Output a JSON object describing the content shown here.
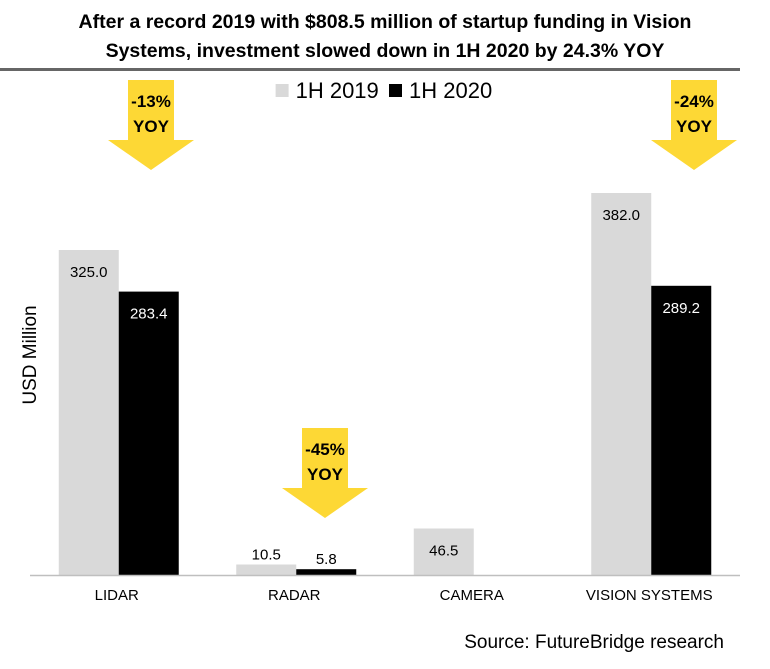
{
  "title_line1": "After a record 2019 with $808.5 million of startup funding in Vision",
  "title_line2": "Systems, investment slowed down in 1H 2020 by 24.3% YOY",
  "source": "Source: FutureBridge research",
  "colors": {
    "series_2019": "#d9d9d9",
    "series_2020": "#000000",
    "arrow": "#fdd835",
    "axis": "#bfbfbf"
  },
  "chart_data": {
    "type": "bar",
    "title": "After a record 2019 with $808.5 million of startup funding in Vision Systems, investment slowed down in 1H 2020 by 24.3% YOY",
    "xlabel": "",
    "ylabel": "USD Million",
    "ylim": [
      0,
      500
    ],
    "grid": false,
    "legend_position": "top",
    "categories": [
      "LIDAR",
      "RADAR",
      "CAMERA",
      "VISION SYSTEMS"
    ],
    "series": [
      {
        "name": "1H 2019",
        "values": [
          325.0,
          10.5,
          46.5,
          382.0
        ],
        "labels": [
          "325.0",
          "10.5",
          "46.5",
          "382.0"
        ]
      },
      {
        "name": "1H 2020",
        "values": [
          283.4,
          5.8,
          null,
          289.2
        ],
        "labels": [
          "283.4",
          "5.8",
          "",
          "289.2"
        ]
      }
    ],
    "annotations": [
      {
        "category": "LIDAR",
        "line1": "-13%",
        "line2": "YOY"
      },
      {
        "category": "RADAR",
        "line1": "-45%",
        "line2": "YOY"
      },
      {
        "category": "VISION SYSTEMS",
        "line1": "-24%",
        "line2": "YOY"
      }
    ]
  }
}
